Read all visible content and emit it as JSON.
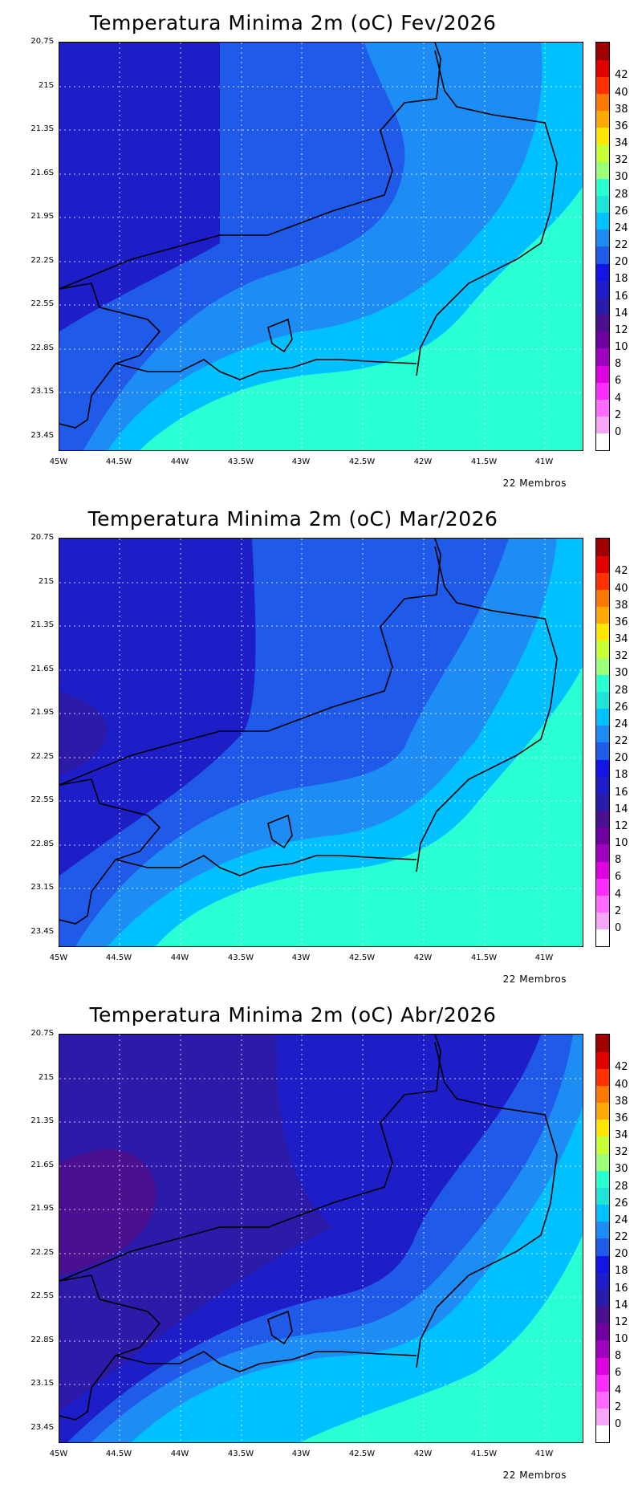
{
  "panels": [
    {
      "title": "Temperatura Minima 2m (oC) Fev/2026",
      "footer": "22 Membros"
    },
    {
      "title": "Temperatura Minima 2m (oC) Mar/2026",
      "footer": "22 Membros"
    },
    {
      "title": "Temperatura Minima 2m (oC) Abr/2026",
      "footer": "22 Membros"
    }
  ],
  "axes": {
    "lat_labels": [
      "20.7S",
      "21S",
      "21.3S",
      "21.6S",
      "21.9S",
      "22.2S",
      "22.5S",
      "22.8S",
      "23.1S",
      "23.4S"
    ],
    "lon_labels": [
      "45W",
      "44.5W",
      "44W",
      "43.5W",
      "43W",
      "42.5W",
      "42W",
      "41.5W",
      "41W"
    ]
  },
  "legend": {
    "labels": [
      "0",
      "2",
      "4",
      "6",
      "8",
      "10",
      "12",
      "14",
      "16",
      "18",
      "20",
      "22",
      "24",
      "26",
      "28",
      "30",
      "32",
      "34",
      "36",
      "38",
      "40",
      "42"
    ],
    "colors": [
      "#ffffff",
      "#f7a6f7",
      "#ff6bff",
      "#ff2cff",
      "#e000e0",
      "#a000c0",
      "#7000a0",
      "#4a1090",
      "#2c1aa8",
      "#1e1ec8",
      "#1414e6",
      "#1f5ae8",
      "#1e8cf5",
      "#00c0ff",
      "#1ee6d7",
      "#28ffd2",
      "#9bff78",
      "#c8ff32",
      "#ffe600",
      "#ffaa00",
      "#ff7800",
      "#ff3200",
      "#e10000",
      "#a00000"
    ]
  }
}
